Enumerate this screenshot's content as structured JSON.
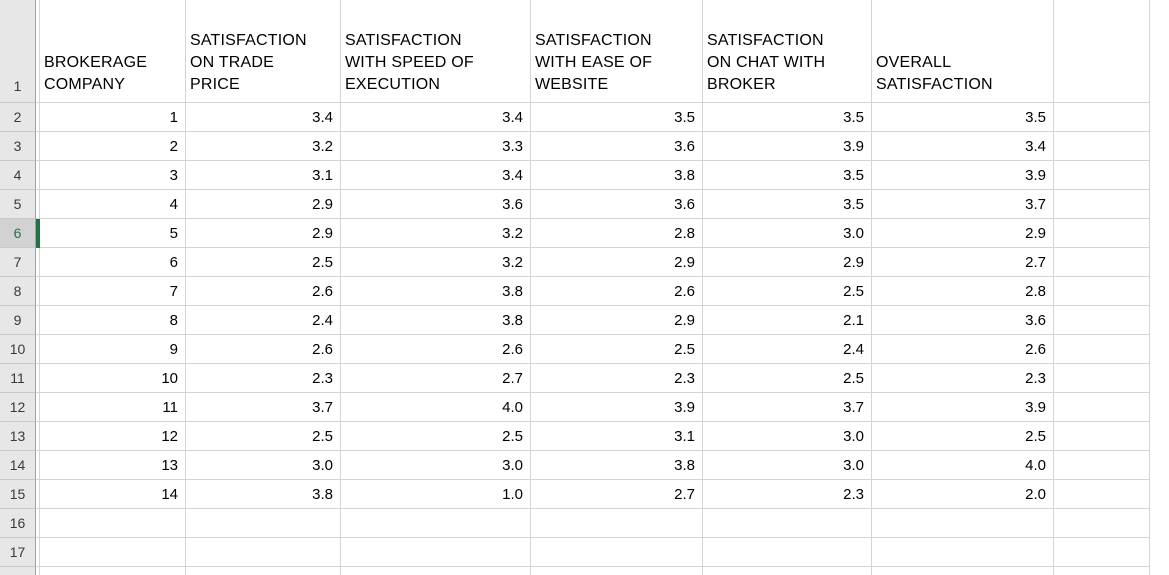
{
  "sheet": {
    "header_row_number": "1",
    "selection": {
      "selected_row_number": "6",
      "accent_color": "#217346"
    },
    "colors": {
      "gridline": "#d4d4d4",
      "gutter_background": "#e7e7e7",
      "gutter_selected_background": "#d2d2d2",
      "gutter_border": "#9f9f9f",
      "selection_green": "#217346",
      "cell_text": "#000000"
    },
    "columns": [
      {
        "id": "brokerage-company",
        "label": "BROKERAGE COMPANY",
        "header_lines": [
          "BROKERAGE",
          "COMPANY"
        ]
      },
      {
        "id": "satisfaction-on-trade-price",
        "label": "SATISFACTION ON TRADE PRICE",
        "header_lines": [
          "SATISFACTION",
          "ON TRADE",
          "PRICE"
        ]
      },
      {
        "id": "satisfaction-with-speed-of-execution",
        "label": "SATISFACTION WITH SPEED OF EXECUTION",
        "header_lines": [
          "SATISFACTION",
          "WITH SPEED OF",
          "EXECUTION"
        ]
      },
      {
        "id": "satisfaction-with-ease-of-website",
        "label": "SATISFACTION WITH EASE OF WEBSITE",
        "header_lines": [
          "SATISFACTION",
          "WITH EASE OF",
          "WEBSITE"
        ]
      },
      {
        "id": "satisfaction-on-chat-with-broker",
        "label": "SATISFACTION ON CHAT WITH BROKER",
        "header_lines": [
          "SATISFACTION",
          "ON CHAT WITH",
          "BROKER"
        ]
      },
      {
        "id": "overall-satisfaction",
        "label": "OVERALL SATISFACTION",
        "header_lines": [
          "OVERALL",
          "SATISFACTION"
        ]
      }
    ],
    "rows": [
      {
        "row_number": "2",
        "cells": [
          "1",
          "3.4",
          "3.4",
          "3.5",
          "3.5",
          "3.5"
        ]
      },
      {
        "row_number": "3",
        "cells": [
          "2",
          "3.2",
          "3.3",
          "3.6",
          "3.9",
          "3.4"
        ]
      },
      {
        "row_number": "4",
        "cells": [
          "3",
          "3.1",
          "3.4",
          "3.8",
          "3.5",
          "3.9"
        ]
      },
      {
        "row_number": "5",
        "cells": [
          "4",
          "2.9",
          "3.6",
          "3.6",
          "3.5",
          "3.7"
        ]
      },
      {
        "row_number": "6",
        "cells": [
          "5",
          "2.9",
          "3.2",
          "2.8",
          "3.0",
          "2.9"
        ]
      },
      {
        "row_number": "7",
        "cells": [
          "6",
          "2.5",
          "3.2",
          "2.9",
          "2.9",
          "2.7"
        ]
      },
      {
        "row_number": "8",
        "cells": [
          "7",
          "2.6",
          "3.8",
          "2.6",
          "2.5",
          "2.8"
        ]
      },
      {
        "row_number": "9",
        "cells": [
          "8",
          "2.4",
          "3.8",
          "2.9",
          "2.1",
          "3.6"
        ]
      },
      {
        "row_number": "10",
        "cells": [
          "9",
          "2.6",
          "2.6",
          "2.5",
          "2.4",
          "2.6"
        ]
      },
      {
        "row_number": "11",
        "cells": [
          "10",
          "2.3",
          "2.7",
          "2.3",
          "2.5",
          "2.3"
        ]
      },
      {
        "row_number": "12",
        "cells": [
          "11",
          "3.7",
          "4.0",
          "3.9",
          "3.7",
          "3.9"
        ]
      },
      {
        "row_number": "13",
        "cells": [
          "12",
          "2.5",
          "2.5",
          "3.1",
          "3.0",
          "2.5"
        ]
      },
      {
        "row_number": "14",
        "cells": [
          "13",
          "3.0",
          "3.0",
          "3.8",
          "3.0",
          "4.0"
        ]
      },
      {
        "row_number": "15",
        "cells": [
          "14",
          "3.8",
          "1.0",
          "2.7",
          "2.3",
          "2.0"
        ]
      },
      {
        "row_number": "16",
        "cells": [
          "",
          "",
          "",
          "",
          "",
          ""
        ]
      },
      {
        "row_number": "17",
        "cells": [
          "",
          "",
          "",
          "",
          "",
          ""
        ]
      }
    ]
  }
}
